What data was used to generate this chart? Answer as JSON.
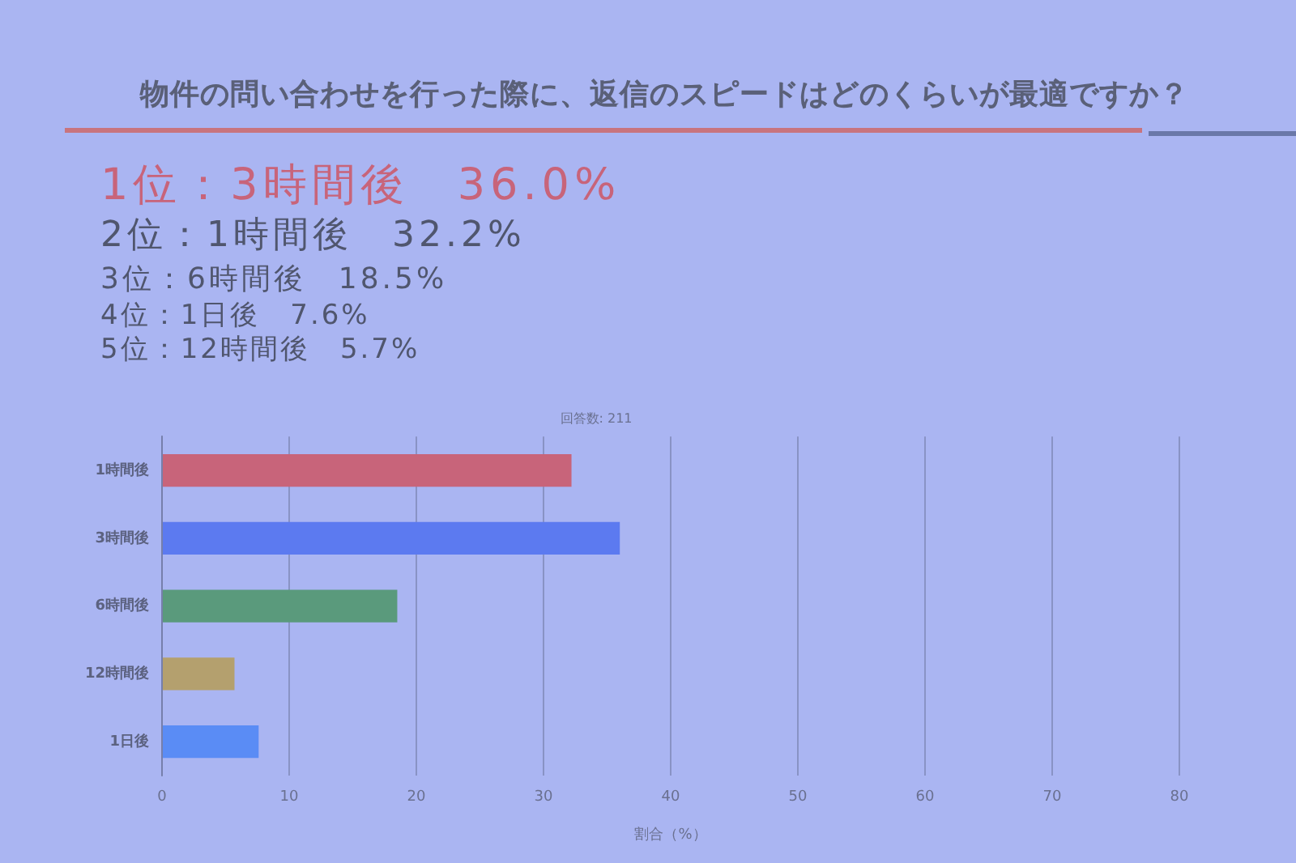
{
  "chart_data": {
    "type": "bar",
    "orientation": "horizontal",
    "title": "物件の問い合わせを行った際に、返信のスピードはどのくらいが最適ですか？",
    "subtitle": "回答数: 211",
    "xlabel": "割合（%）",
    "annotations": [
      "1位：3時間後　36.0%",
      "2位：1時間後　32.2%",
      "3位：6時間後　18.5%",
      "4位：1日後　7.6%",
      "5位：12時間後　5.7%"
    ],
    "categories": [
      "1時間後",
      "3時間後",
      "6時間後",
      "12時間後",
      "1日後"
    ],
    "values": [
      32.2,
      36.0,
      18.5,
      5.7,
      7.6
    ],
    "colors": [
      "#c8647a",
      "#5c7af0",
      "#5a9a7c",
      "#b4a06e",
      "#5a8cf5"
    ],
    "xlim": [
      0,
      80
    ],
    "xticks": [
      0,
      10,
      20,
      30,
      40,
      50,
      60,
      70,
      80
    ],
    "grid": "x"
  }
}
